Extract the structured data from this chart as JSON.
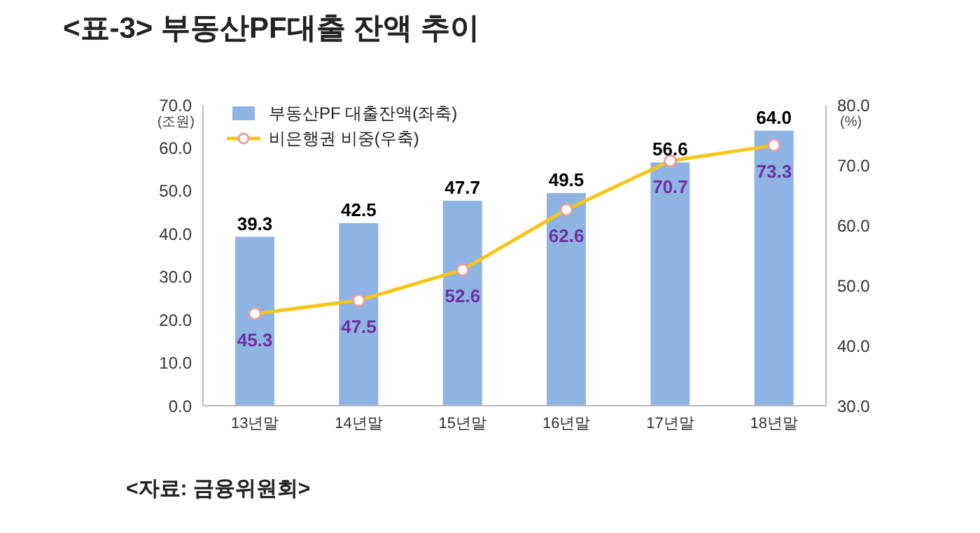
{
  "chart_data": {
    "type": "bar",
    "title": "<표-3>  부동산PF대출 잔액 추이",
    "ylabel": "(조원)",
    "y2label": "(%)",
    "annotations": [
      "<자료: 금융위원회>"
    ],
    "categories": [
      "13년말",
      "14년말",
      "15년말",
      "16년말",
      "17년말",
      "18년말"
    ],
    "series": [
      {
        "name": "부동산PF 대출잔액(좌축)",
        "color": "#8eb4e3",
        "values": [
          39.3,
          42.5,
          47.7,
          49.5,
          56.6,
          64.0
        ],
        "value_labels": [
          "39.3",
          "42.5",
          "47.7",
          "49.5",
          "56.6",
          "64.0"
        ]
      },
      {
        "name": "비은행권 비중(우축)",
        "type": "line",
        "axis": "y2",
        "color": "#f5c518",
        "values": [
          45.3,
          47.5,
          52.6,
          62.6,
          70.7,
          73.3
        ],
        "value_labels": [
          "45.3",
          "47.5",
          "52.6",
          "62.6",
          "70.7",
          "73.3"
        ]
      }
    ],
    "ylim": [
      0,
      70
    ],
    "yticks": [
      {
        "value": 0,
        "label": "0.0"
      },
      {
        "value": 10,
        "label": "10.0"
      },
      {
        "value": 20,
        "label": "20.0"
      },
      {
        "value": 30,
        "label": "30.0"
      },
      {
        "value": 40,
        "label": "40.0"
      },
      {
        "value": 50,
        "label": "50.0"
      },
      {
        "value": 60,
        "label": "60.0"
      },
      {
        "value": 70,
        "label": "70.0"
      }
    ],
    "y2lim": [
      30,
      80
    ],
    "y2ticks": [
      {
        "value": 30,
        "label": "30.0"
      },
      {
        "value": 40,
        "label": "40.0"
      },
      {
        "value": 50,
        "label": "50.0"
      },
      {
        "value": 60,
        "label": "60.0"
      },
      {
        "value": 70,
        "label": "70.0"
      },
      {
        "value": 80,
        "label": "80.0"
      }
    ],
    "legend": "top left",
    "marker": "circle"
  }
}
